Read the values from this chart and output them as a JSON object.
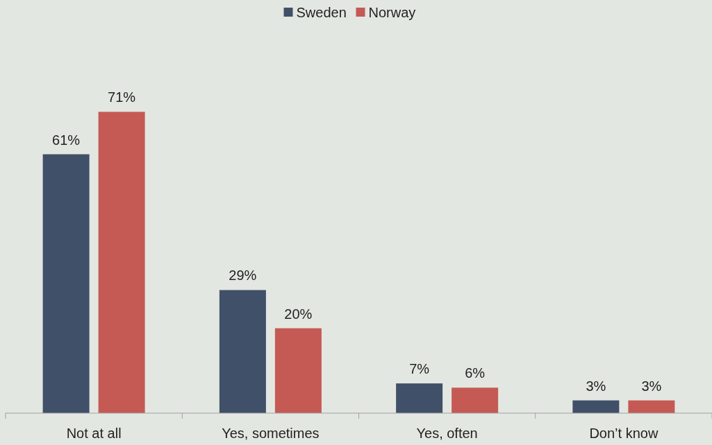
{
  "chart_data": {
    "type": "bar",
    "categories": [
      "Not at all",
      "Yes, sometimes",
      "Yes, often",
      "Don’t know"
    ],
    "series": [
      {
        "name": "Sweden",
        "color": "#3f5068",
        "values": [
          61,
          29,
          7,
          3
        ],
        "value_labels": [
          "61%",
          "29%",
          "7%",
          "3%"
        ]
      },
      {
        "name": "Norway",
        "color": "#c55a55",
        "values": [
          71,
          20,
          6,
          3
        ],
        "value_labels": [
          "71%",
          "20%",
          "6%",
          "3%"
        ]
      }
    ],
    "legend": "top"
  }
}
